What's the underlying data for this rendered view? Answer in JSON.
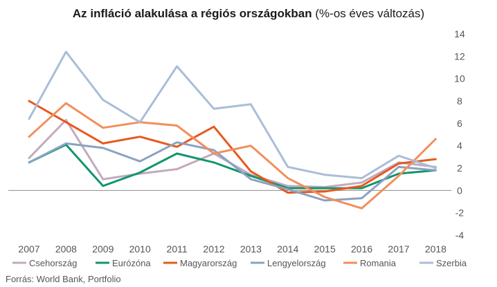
{
  "chart_data": {
    "type": "line",
    "title": "Az infláció alakulása a régiós országokban",
    "subtitle": "(%-os éves változás)",
    "categories": [
      "2007",
      "2008",
      "2009",
      "2010",
      "2011",
      "2012",
      "2013",
      "2014",
      "2015",
      "2016",
      "2017",
      "2018"
    ],
    "ylim": [
      -4,
      14
    ],
    "yticks": [
      -4,
      -2,
      0,
      2,
      4,
      6,
      8,
      10,
      12,
      14
    ],
    "y_axis_side": "right",
    "grid": false,
    "legend_position": "bottom",
    "series": [
      {
        "name": "Csehország",
        "color": "#c2a9bf",
        "values": [
          2.9,
          6.3,
          1.0,
          1.5,
          1.9,
          3.3,
          1.4,
          0.4,
          0.3,
          0.7,
          2.5,
          2.1
        ]
      },
      {
        "name": "Eurózóna",
        "color": "#12956b",
        "values": [
          2.5,
          4.1,
          0.4,
          1.6,
          3.3,
          2.5,
          1.3,
          0.2,
          0.2,
          0.2,
          1.5,
          1.8
        ]
      },
      {
        "name": "Magyarország",
        "color": "#e8581c",
        "values": [
          8.0,
          6.1,
          4.2,
          4.8,
          3.9,
          5.7,
          1.7,
          -0.2,
          -0.1,
          0.4,
          2.4,
          2.8
        ]
      },
      {
        "name": "Lengyelország",
        "color": "#8aa2c1",
        "values": [
          2.5,
          4.2,
          3.8,
          2.6,
          4.3,
          3.6,
          1.0,
          0.1,
          -0.9,
          -0.7,
          2.1,
          1.8
        ]
      },
      {
        "name": "Romania",
        "color": "#f28e5b",
        "values": [
          4.8,
          7.8,
          5.6,
          6.1,
          5.8,
          3.3,
          4.0,
          1.1,
          -0.6,
          -1.6,
          1.3,
          4.6
        ]
      },
      {
        "name": "Szerbia",
        "color": "#a9bdd8",
        "values": [
          6.4,
          12.4,
          8.1,
          6.1,
          11.1,
          7.3,
          7.7,
          2.1,
          1.4,
          1.1,
          3.1,
          2.0
        ]
      }
    ]
  },
  "source": "Forrás: World Bank, Portfolio"
}
